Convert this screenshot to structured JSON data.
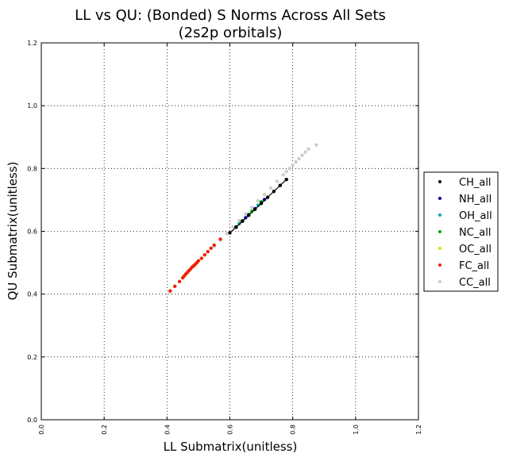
{
  "chart_data": {
    "type": "scatter",
    "title_lines": [
      "LL vs QU: (Bonded) S Norms Across All Sets",
      "(2s2p orbitals)"
    ],
    "xlabel": "LL Submatrix(unitless)",
    "ylabel": "QU Submatrix(unitless)",
    "xlim": [
      0.0,
      1.2
    ],
    "ylim": [
      0.0,
      1.2
    ],
    "x_ticks": [
      "0.0",
      "0.2",
      "0.4",
      "0.6",
      "0.8",
      "1.0",
      "1.2"
    ],
    "y_ticks": [
      "0.0",
      "0.2",
      "0.4",
      "0.6",
      "0.8",
      "1.0",
      "1.2"
    ],
    "grid": true,
    "legend_position": "outside-right",
    "series": [
      {
        "name": "CH_all",
        "color": "#000000",
        "x": [
          0.6,
          0.62,
          0.64,
          0.66,
          0.68,
          0.7,
          0.72,
          0.74,
          0.76,
          0.78
        ],
        "y": [
          0.595,
          0.613,
          0.632,
          0.651,
          0.67,
          0.689,
          0.708,
          0.727,
          0.746,
          0.765
        ]
      },
      {
        "name": "NH_all",
        "color": "#0000aa",
        "x": [
          0.62,
          0.65,
          0.68,
          0.71
        ],
        "y": [
          0.614,
          0.643,
          0.672,
          0.701
        ]
      },
      {
        "name": "OH_all",
        "color": "#00aaaa",
        "x": [
          0.63,
          0.66,
          0.69
        ],
        "y": [
          0.624,
          0.654,
          0.683
        ]
      },
      {
        "name": "NC_all",
        "color": "#00aa00",
        "x": [
          0.64,
          0.67,
          0.7
        ],
        "y": [
          0.634,
          0.664,
          0.694
        ]
      },
      {
        "name": "OC_all",
        "color": "#dddd00",
        "x": [
          0.63,
          0.66
        ],
        "y": [
          0.625,
          0.655
        ]
      },
      {
        "name": "FC_all",
        "color": "#ee2200",
        "x": [
          0.41,
          0.425,
          0.44,
          0.45,
          0.455,
          0.46,
          0.465,
          0.47,
          0.475,
          0.48,
          0.485,
          0.49,
          0.495,
          0.5,
          0.51,
          0.52,
          0.53,
          0.54,
          0.55,
          0.57
        ],
        "y": [
          0.41,
          0.425,
          0.44,
          0.452,
          0.458,
          0.464,
          0.469,
          0.475,
          0.48,
          0.486,
          0.49,
          0.495,
          0.5,
          0.506,
          0.514,
          0.525,
          0.535,
          0.546,
          0.556,
          0.575
        ]
      },
      {
        "name": "CC_all",
        "color": "#cccccc",
        "x": [
          0.55,
          0.57,
          0.59,
          0.61,
          0.63,
          0.65,
          0.67,
          0.69,
          0.71,
          0.73,
          0.75,
          0.77,
          0.78,
          0.79,
          0.8,
          0.81,
          0.82,
          0.83,
          0.84,
          0.85,
          0.875
        ],
        "y": [
          0.552,
          0.573,
          0.593,
          0.614,
          0.634,
          0.655,
          0.676,
          0.697,
          0.717,
          0.738,
          0.759,
          0.78,
          0.79,
          0.8,
          0.811,
          0.821,
          0.831,
          0.842,
          0.852,
          0.862,
          0.875
        ]
      }
    ]
  }
}
